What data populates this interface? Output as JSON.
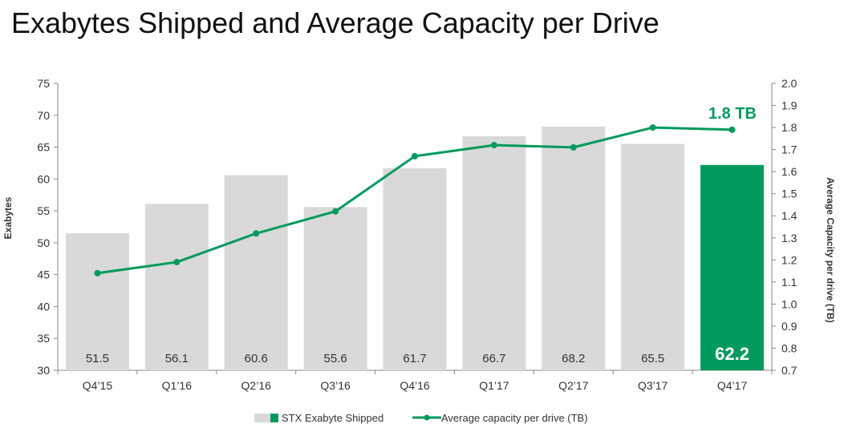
{
  "title": "Exabytes Shipped and Average Capacity per Drive",
  "colors": {
    "bar": "#d9d9d9",
    "highlight_bar": "#009a5e",
    "line": "#009a5e",
    "axis": "#888888",
    "text": "#333333"
  },
  "chart_data": {
    "type": "bar",
    "categories": [
      "Q4’15",
      "Q1’16",
      "Q2’16",
      "Q3’16",
      "Q4’16",
      "Q1’17",
      "Q2’17",
      "Q3’17",
      "Q4’17"
    ],
    "series": [
      {
        "name": "STX Exabyte Shipped",
        "type": "bar",
        "axis": "left",
        "values": [
          51.5,
          56.1,
          60.6,
          55.6,
          61.7,
          66.7,
          68.2,
          65.5,
          62.2
        ],
        "labels": [
          "51.5",
          "56.1",
          "60.6",
          "55.6",
          "61.7",
          "66.7",
          "68.2",
          "65.5",
          "62.2"
        ],
        "highlight_index": 8
      },
      {
        "name": "Average capacity per drive (TB)",
        "type": "line",
        "axis": "right",
        "values": [
          1.14,
          1.19,
          1.32,
          1.42,
          1.67,
          1.72,
          1.71,
          1.8,
          1.79
        ]
      }
    ],
    "ylabel": "Exabytes",
    "y2label": "Average Capacity per drive (TB)",
    "ylim": [
      30,
      75
    ],
    "y2lim": [
      0.7,
      2.0
    ],
    "yticks": [
      "30",
      "35",
      "40",
      "45",
      "50",
      "55",
      "60",
      "65",
      "70",
      "75"
    ],
    "y2ticks": [
      "0.7",
      "0.8",
      "0.9",
      "1.0",
      "1.1",
      "1.2",
      "1.3",
      "1.4",
      "1.5",
      "1.6",
      "1.7",
      "1.8",
      "1.9",
      "2.0"
    ],
    "annotation": "1.8 TB",
    "legend_position": "bottom-center",
    "grid": false
  }
}
